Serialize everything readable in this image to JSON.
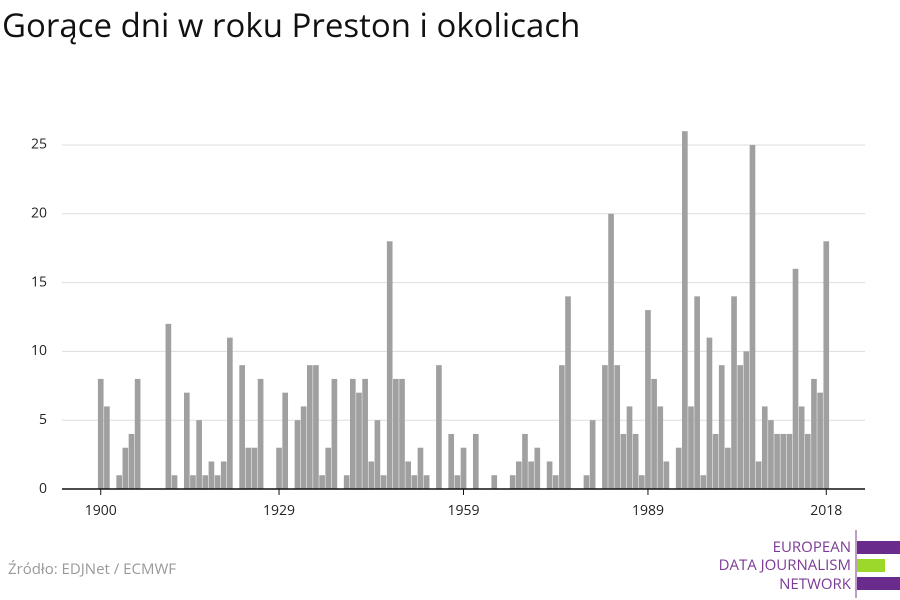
{
  "chart_data": {
    "type": "bar",
    "title": "Gorące dni w roku Preston i okolicach",
    "source": "Źródło: EDJNet / ECMWF",
    "logo": [
      "EUROPEAN",
      "DATA JOURNALISM",
      "NETWORK"
    ],
    "x": [
      1900,
      1901,
      1902,
      1903,
      1904,
      1905,
      1906,
      1907,
      1908,
      1909,
      1910,
      1911,
      1912,
      1913,
      1914,
      1915,
      1916,
      1917,
      1918,
      1919,
      1920,
      1921,
      1922,
      1923,
      1924,
      1925,
      1926,
      1927,
      1928,
      1929,
      1930,
      1931,
      1932,
      1933,
      1934,
      1935,
      1936,
      1937,
      1938,
      1939,
      1940,
      1941,
      1942,
      1943,
      1944,
      1945,
      1946,
      1947,
      1948,
      1949,
      1950,
      1951,
      1952,
      1953,
      1954,
      1955,
      1956,
      1957,
      1958,
      1959,
      1960,
      1961,
      1962,
      1963,
      1964,
      1965,
      1966,
      1967,
      1968,
      1969,
      1970,
      1971,
      1972,
      1973,
      1974,
      1975,
      1976,
      1977,
      1978,
      1979,
      1980,
      1981,
      1982,
      1983,
      1984,
      1985,
      1986,
      1987,
      1988,
      1989,
      1990,
      1991,
      1992,
      1993,
      1994,
      1995,
      1996,
      1997,
      1998,
      1999,
      2000,
      2001,
      2002,
      2003,
      2004,
      2005,
      2006,
      2007,
      2008,
      2009,
      2010,
      2011,
      2012,
      2013,
      2014,
      2015,
      2016,
      2017,
      2018
    ],
    "values": [
      8,
      6,
      0,
      1,
      3,
      4,
      8,
      0,
      0,
      0,
      0,
      12,
      1,
      0,
      7,
      1,
      5,
      1,
      2,
      1,
      2,
      11,
      0,
      9,
      3,
      3,
      8,
      0,
      0,
      3,
      7,
      0,
      5,
      6,
      9,
      9,
      1,
      3,
      8,
      0,
      1,
      8,
      7,
      8,
      2,
      5,
      1,
      18,
      8,
      8,
      2,
      1,
      3,
      1,
      0,
      9,
      0,
      4,
      1,
      3,
      0,
      4,
      0,
      0,
      1,
      0,
      0,
      1,
      2,
      4,
      2,
      3,
      0,
      2,
      1,
      9,
      14,
      0,
      0,
      1,
      5,
      0,
      9,
      20,
      9,
      4,
      6,
      4,
      1,
      13,
      8,
      6,
      2,
      0,
      3,
      26,
      6,
      14,
      1,
      11,
      4,
      9,
      3,
      14,
      9,
      10,
      25,
      2,
      6,
      5,
      4,
      4,
      4,
      16,
      6,
      4,
      8,
      7,
      18
    ],
    "color": "#a0a0a0",
    "xlim": [
      1893.7,
      2024.3
    ],
    "xticks": [
      1900,
      1929,
      1959,
      1989,
      2018
    ],
    "ylim": [
      0,
      26
    ],
    "yticks": [
      0,
      5,
      10,
      15,
      20,
      25
    ],
    "grid": true
  }
}
